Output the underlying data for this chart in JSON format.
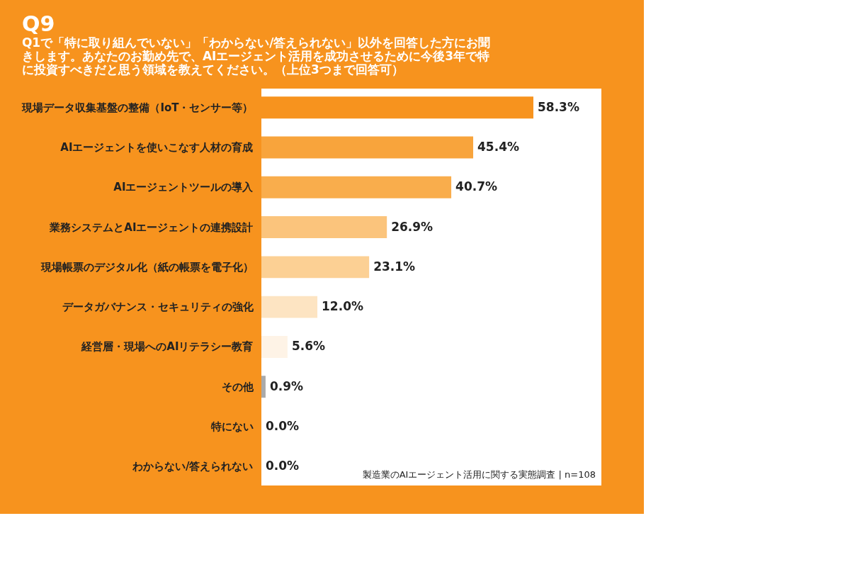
{
  "chart_data": {
    "type": "bar",
    "orientation": "horizontal",
    "title": "Q9",
    "subtitle": "Q1で「特に取り組んでいない」「わからない/答えられない」以外を回答した方にお聞きします。あなたのお勤め先で、AIエージェント活用を成功させるために今後3年で特に投資すべきだと思う領域を教えてください。（上位3つまで回答可）",
    "categories": [
      "現場データ収集基盤の整備（IoT・センサー等）",
      "AIエージェントを使いこなす人材の育成",
      "AIエージェントツールの導入",
      "業務システムとAIエージェントの連携設計",
      "現場帳票のデジタル化（紙の帳票を電子化）",
      "データガバナンス・セキュリティの強化",
      "経営層・現場へのAIリテラシー教育",
      "その他",
      "特にない",
      "わからない/答えられない"
    ],
    "values": [
      58.3,
      45.4,
      40.7,
      26.9,
      23.1,
      12.0,
      5.6,
      0.9,
      0.0,
      0.0
    ],
    "value_labels": [
      "58.3%",
      "45.4%",
      "40.7%",
      "26.9%",
      "23.1%",
      "12.0%",
      "5.6%",
      "0.9%",
      "0.0%",
      "0.0%"
    ],
    "colors": [
      "#f7931e",
      "#f8a43c",
      "#f9ad4c",
      "#fbc47c",
      "#fcd094",
      "#fde4c2",
      "#fef3e6",
      "#aaaaaa",
      "#cccccc",
      "#cccccc"
    ],
    "annotations": [
      "製造業のAIエージェント活用に関する実態調査 | n=108"
    ],
    "grid": false,
    "legend": false
  }
}
